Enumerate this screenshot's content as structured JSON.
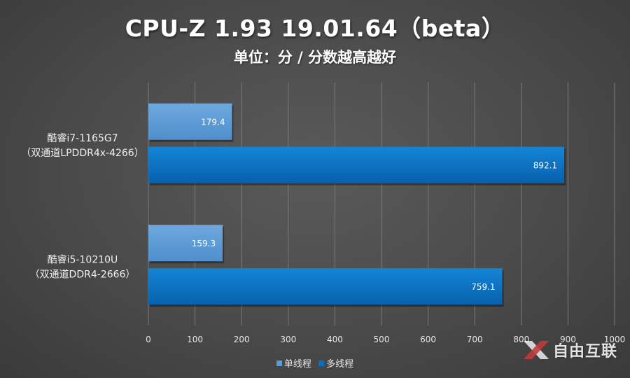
{
  "chart_data": {
    "type": "bar",
    "orientation": "horizontal",
    "title": "CPU-Z 1.93 19.01.64（beta）",
    "subtitle": "单位：分 / 分数越高越好",
    "categories": [
      {
        "line1": "酷睿i7-1165G7",
        "line2": "（双通道LPDDR4x-4266）"
      },
      {
        "line1": "酷睿i5-10210U",
        "line2": "（双通道DDR4-2666）"
      }
    ],
    "series": [
      {
        "name": "单线程",
        "values": [
          179.4,
          159.3
        ],
        "color": "#5b9bd5"
      },
      {
        "name": "多线程",
        "values": [
          892.1,
          759.1
        ],
        "color": "#0a6fc2"
      }
    ],
    "xlim": [
      0,
      1000
    ],
    "xticks": [
      0,
      100,
      200,
      300,
      400,
      500,
      600,
      700,
      800,
      900,
      1000
    ],
    "grid": true,
    "legend_position": "bottom"
  },
  "watermark": {
    "text": "自由互联",
    "icon": "x-logo-icon"
  }
}
